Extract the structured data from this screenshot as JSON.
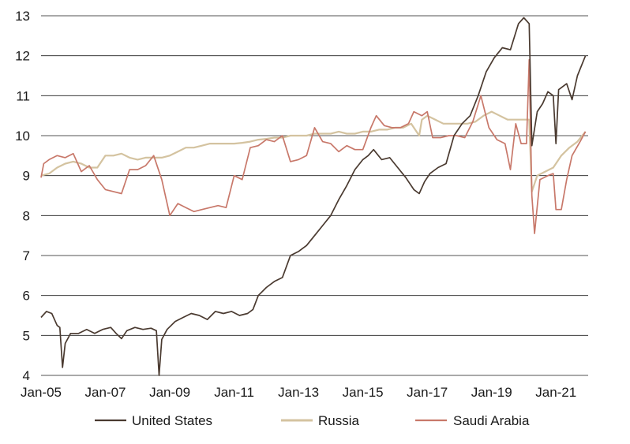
{
  "chart_data": {
    "type": "line",
    "title": "",
    "xlabel": "",
    "ylabel": "",
    "ylim": [
      4,
      13
    ],
    "yticks": [
      4,
      5,
      6,
      7,
      8,
      9,
      10,
      11,
      12,
      13
    ],
    "xlim": [
      "2005-01",
      "2022-01"
    ],
    "xticks": [
      "Jan-05",
      "Jan-07",
      "Jan-09",
      "Jan-11",
      "Jan-13",
      "Jan-15",
      "Jan-17",
      "Jan-19",
      "Jan-21"
    ],
    "grid": "horizontal",
    "legend_position": "bottom",
    "series": [
      {
        "name": "United States",
        "color": "#4a3a30",
        "points": [
          [
            "2005-01",
            5.45
          ],
          [
            "2005-03",
            5.6
          ],
          [
            "2005-05",
            5.55
          ],
          [
            "2005-07",
            5.25
          ],
          [
            "2005-08",
            5.2
          ],
          [
            "2005-09",
            4.2
          ],
          [
            "2005-10",
            4.8
          ],
          [
            "2005-12",
            5.05
          ],
          [
            "2006-03",
            5.05
          ],
          [
            "2006-06",
            5.15
          ],
          [
            "2006-09",
            5.05
          ],
          [
            "2006-12",
            5.15
          ],
          [
            "2007-03",
            5.2
          ],
          [
            "2007-05",
            5.05
          ],
          [
            "2007-07",
            4.92
          ],
          [
            "2007-09",
            5.12
          ],
          [
            "2007-12",
            5.2
          ],
          [
            "2008-03",
            5.15
          ],
          [
            "2008-06",
            5.18
          ],
          [
            "2008-08",
            5.12
          ],
          [
            "2008-09",
            4.0
          ],
          [
            "2008-10",
            4.9
          ],
          [
            "2008-12",
            5.15
          ],
          [
            "2009-03",
            5.35
          ],
          [
            "2009-06",
            5.45
          ],
          [
            "2009-09",
            5.55
          ],
          [
            "2009-12",
            5.5
          ],
          [
            "2010-03",
            5.4
          ],
          [
            "2010-06",
            5.6
          ],
          [
            "2010-09",
            5.55
          ],
          [
            "2010-12",
            5.6
          ],
          [
            "2011-03",
            5.5
          ],
          [
            "2011-06",
            5.55
          ],
          [
            "2011-08",
            5.65
          ],
          [
            "2011-10",
            6.0
          ],
          [
            "2012-01",
            6.2
          ],
          [
            "2012-04",
            6.35
          ],
          [
            "2012-07",
            6.45
          ],
          [
            "2012-10",
            7.0
          ],
          [
            "2013-01",
            7.1
          ],
          [
            "2013-04",
            7.25
          ],
          [
            "2013-07",
            7.5
          ],
          [
            "2013-10",
            7.75
          ],
          [
            "2014-01",
            8.0
          ],
          [
            "2014-04",
            8.4
          ],
          [
            "2014-07",
            8.75
          ],
          [
            "2014-10",
            9.15
          ],
          [
            "2015-01",
            9.4
          ],
          [
            "2015-03",
            9.5
          ],
          [
            "2015-05",
            9.65
          ],
          [
            "2015-08",
            9.4
          ],
          [
            "2015-11",
            9.45
          ],
          [
            "2016-02",
            9.2
          ],
          [
            "2016-05",
            8.95
          ],
          [
            "2016-08",
            8.65
          ],
          [
            "2016-10",
            8.55
          ],
          [
            "2016-12",
            8.85
          ],
          [
            "2017-02",
            9.05
          ],
          [
            "2017-05",
            9.2
          ],
          [
            "2017-08",
            9.3
          ],
          [
            "2017-11",
            10.0
          ],
          [
            "2018-02",
            10.3
          ],
          [
            "2018-05",
            10.5
          ],
          [
            "2018-08",
            11.0
          ],
          [
            "2018-11",
            11.6
          ],
          [
            "2019-02",
            11.95
          ],
          [
            "2019-05",
            12.2
          ],
          [
            "2019-08",
            12.15
          ],
          [
            "2019-11",
            12.8
          ],
          [
            "2020-01",
            12.95
          ],
          [
            "2020-03",
            12.8
          ],
          [
            "2020-04",
            9.75
          ],
          [
            "2020-06",
            10.6
          ],
          [
            "2020-08",
            10.8
          ],
          [
            "2020-10",
            11.1
          ],
          [
            "2020-12",
            11.0
          ],
          [
            "2021-01",
            9.8
          ],
          [
            "2021-02",
            11.15
          ],
          [
            "2021-05",
            11.3
          ],
          [
            "2021-07",
            10.9
          ],
          [
            "2021-09",
            11.5
          ],
          [
            "2021-12",
            12.0
          ]
        ]
      },
      {
        "name": "Russia",
        "color": "#d4c3a0",
        "points": [
          [
            "2005-01",
            9.0
          ],
          [
            "2005-04",
            9.05
          ],
          [
            "2005-07",
            9.2
          ],
          [
            "2005-10",
            9.3
          ],
          [
            "2006-01",
            9.35
          ],
          [
            "2006-04",
            9.3
          ],
          [
            "2006-07",
            9.2
          ],
          [
            "2006-10",
            9.2
          ],
          [
            "2007-01",
            9.5
          ],
          [
            "2007-04",
            9.5
          ],
          [
            "2007-07",
            9.55
          ],
          [
            "2007-10",
            9.45
          ],
          [
            "2008-01",
            9.4
          ],
          [
            "2008-04",
            9.45
          ],
          [
            "2008-07",
            9.45
          ],
          [
            "2008-10",
            9.45
          ],
          [
            "2009-01",
            9.5
          ],
          [
            "2009-04",
            9.6
          ],
          [
            "2009-07",
            9.7
          ],
          [
            "2009-10",
            9.7
          ],
          [
            "2010-01",
            9.75
          ],
          [
            "2010-04",
            9.8
          ],
          [
            "2010-07",
            9.8
          ],
          [
            "2010-10",
            9.8
          ],
          [
            "2011-01",
            9.8
          ],
          [
            "2011-04",
            9.82
          ],
          [
            "2011-07",
            9.85
          ],
          [
            "2011-10",
            9.9
          ],
          [
            "2012-01",
            9.92
          ],
          [
            "2012-04",
            9.95
          ],
          [
            "2012-07",
            9.95
          ],
          [
            "2012-10",
            10.0
          ],
          [
            "2013-01",
            10.0
          ],
          [
            "2013-04",
            10.0
          ],
          [
            "2013-07",
            10.05
          ],
          [
            "2013-10",
            10.05
          ],
          [
            "2014-01",
            10.05
          ],
          [
            "2014-04",
            10.1
          ],
          [
            "2014-07",
            10.05
          ],
          [
            "2014-10",
            10.05
          ],
          [
            "2015-01",
            10.1
          ],
          [
            "2015-04",
            10.1
          ],
          [
            "2015-07",
            10.15
          ],
          [
            "2015-10",
            10.15
          ],
          [
            "2016-01",
            10.2
          ],
          [
            "2016-04",
            10.2
          ],
          [
            "2016-07",
            10.3
          ],
          [
            "2016-10",
            10.0
          ],
          [
            "2016-11",
            10.4
          ],
          [
            "2017-01",
            10.5
          ],
          [
            "2017-04",
            10.4
          ],
          [
            "2017-07",
            10.3
          ],
          [
            "2017-10",
            10.3
          ],
          [
            "2018-01",
            10.3
          ],
          [
            "2018-04",
            10.3
          ],
          [
            "2018-07",
            10.35
          ],
          [
            "2018-10",
            10.5
          ],
          [
            "2019-01",
            10.6
          ],
          [
            "2019-04",
            10.5
          ],
          [
            "2019-07",
            10.4
          ],
          [
            "2019-10",
            10.4
          ],
          [
            "2020-01",
            10.4
          ],
          [
            "2020-03",
            10.4
          ],
          [
            "2020-04",
            8.6
          ],
          [
            "2020-06",
            9.0
          ],
          [
            "2020-09",
            9.1
          ],
          [
            "2020-12",
            9.2
          ],
          [
            "2021-03",
            9.5
          ],
          [
            "2021-06",
            9.7
          ],
          [
            "2021-09",
            9.85
          ],
          [
            "2021-12",
            10.1
          ]
        ]
      },
      {
        "name": "Saudi Arabia",
        "color": "#c8786a",
        "points": [
          [
            "2005-01",
            8.95
          ],
          [
            "2005-02",
            9.3
          ],
          [
            "2005-04",
            9.4
          ],
          [
            "2005-07",
            9.5
          ],
          [
            "2005-10",
            9.45
          ],
          [
            "2006-01",
            9.55
          ],
          [
            "2006-04",
            9.1
          ],
          [
            "2006-07",
            9.25
          ],
          [
            "2006-10",
            8.9
          ],
          [
            "2007-01",
            8.65
          ],
          [
            "2007-04",
            8.6
          ],
          [
            "2007-07",
            8.55
          ],
          [
            "2007-10",
            9.15
          ],
          [
            "2008-01",
            9.15
          ],
          [
            "2008-04",
            9.25
          ],
          [
            "2008-07",
            9.5
          ],
          [
            "2008-10",
            8.9
          ],
          [
            "2009-01",
            8.0
          ],
          [
            "2009-04",
            8.3
          ],
          [
            "2009-07",
            8.2
          ],
          [
            "2009-10",
            8.1
          ],
          [
            "2010-01",
            8.15
          ],
          [
            "2010-04",
            8.2
          ],
          [
            "2010-07",
            8.25
          ],
          [
            "2010-10",
            8.2
          ],
          [
            "2011-01",
            9.0
          ],
          [
            "2011-04",
            8.9
          ],
          [
            "2011-07",
            9.7
          ],
          [
            "2011-10",
            9.75
          ],
          [
            "2012-01",
            9.9
          ],
          [
            "2012-04",
            9.85
          ],
          [
            "2012-07",
            10.0
          ],
          [
            "2012-10",
            9.35
          ],
          [
            "2013-01",
            9.4
          ],
          [
            "2013-04",
            9.5
          ],
          [
            "2013-07",
            10.2
          ],
          [
            "2013-10",
            9.85
          ],
          [
            "2014-01",
            9.8
          ],
          [
            "2014-04",
            9.6
          ],
          [
            "2014-07",
            9.75
          ],
          [
            "2014-10",
            9.65
          ],
          [
            "2015-01",
            9.65
          ],
          [
            "2015-04",
            10.2
          ],
          [
            "2015-06",
            10.5
          ],
          [
            "2015-09",
            10.25
          ],
          [
            "2015-12",
            10.2
          ],
          [
            "2016-03",
            10.2
          ],
          [
            "2016-06",
            10.3
          ],
          [
            "2016-08",
            10.6
          ],
          [
            "2016-11",
            10.5
          ],
          [
            "2017-01",
            10.6
          ],
          [
            "2017-03",
            9.95
          ],
          [
            "2017-06",
            9.95
          ],
          [
            "2017-09",
            10.0
          ],
          [
            "2017-12",
            10.0
          ],
          [
            "2018-03",
            9.95
          ],
          [
            "2018-06",
            10.35
          ],
          [
            "2018-09",
            11.0
          ],
          [
            "2018-12",
            10.2
          ],
          [
            "2019-03",
            9.9
          ],
          [
            "2019-06",
            9.8
          ],
          [
            "2019-08",
            9.15
          ],
          [
            "2019-10",
            10.3
          ],
          [
            "2019-12",
            9.8
          ],
          [
            "2020-02",
            9.8
          ],
          [
            "2020-03",
            11.9
          ],
          [
            "2020-04",
            8.5
          ],
          [
            "2020-05",
            7.55
          ],
          [
            "2020-07",
            8.9
          ],
          [
            "2020-10",
            9.0
          ],
          [
            "2020-12",
            9.05
          ],
          [
            "2021-01",
            8.15
          ],
          [
            "2021-03",
            8.15
          ],
          [
            "2021-05",
            8.9
          ],
          [
            "2021-07",
            9.5
          ],
          [
            "2021-10",
            9.85
          ],
          [
            "2021-12",
            10.1
          ]
        ]
      }
    ]
  }
}
